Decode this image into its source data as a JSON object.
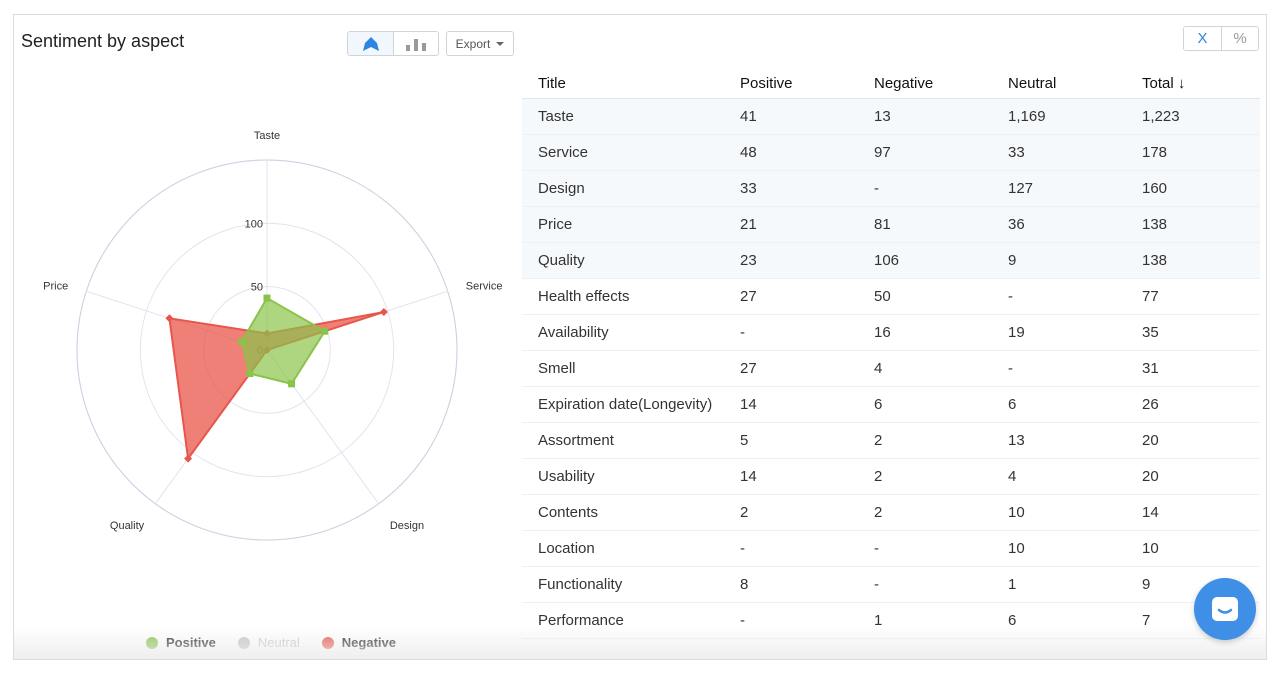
{
  "header": {
    "title": "Sentiment by aspect",
    "export_label": "Export",
    "radar_icon": "radar-chart-icon",
    "bar_icon": "bar-chart-icon",
    "mode_count_label": "X",
    "mode_percent_label": "%"
  },
  "chart_data": {
    "type": "radar",
    "categories": [
      "Taste",
      "Service",
      "Design",
      "Quality",
      "Price"
    ],
    "rticks": [
      0,
      50,
      100
    ],
    "rmax": 150,
    "series": [
      {
        "name": "Positive",
        "values": [
          41,
          48,
          33,
          23,
          21
        ],
        "color": "#8bc34a"
      },
      {
        "name": "Neutral",
        "values": [
          1169,
          33,
          127,
          9,
          36
        ],
        "color": "#c4c4c4",
        "hidden": true
      },
      {
        "name": "Negative",
        "values": [
          13,
          97,
          0,
          106,
          81
        ],
        "color": "#e8564b"
      }
    ],
    "legend": [
      "Positive",
      "Neutral",
      "Negative"
    ]
  },
  "table": {
    "headers": [
      "Title",
      "Positive",
      "Negative",
      "Neutral",
      "Total ↓"
    ],
    "rows": [
      [
        "Taste",
        "41",
        "13",
        "1,169",
        "1,223"
      ],
      [
        "Service",
        "48",
        "97",
        "33",
        "178"
      ],
      [
        "Design",
        "33",
        "-",
        "127",
        "160"
      ],
      [
        "Price",
        "21",
        "81",
        "36",
        "138"
      ],
      [
        "Quality",
        "23",
        "106",
        "9",
        "138"
      ],
      [
        "Health effects",
        "27",
        "50",
        "-",
        "77"
      ],
      [
        "Availability",
        "-",
        "16",
        "19",
        "35"
      ],
      [
        "Smell",
        "27",
        "4",
        "-",
        "31"
      ],
      [
        "Expiration date(Longevity)",
        "14",
        "6",
        "6",
        "26"
      ],
      [
        "Assortment",
        "5",
        "2",
        "13",
        "20"
      ],
      [
        "Usability",
        "14",
        "2",
        "4",
        "20"
      ],
      [
        "Contents",
        "2",
        "2",
        "10",
        "14"
      ],
      [
        "Location",
        "-",
        "-",
        "10",
        "10"
      ],
      [
        "Functionality",
        "8",
        "-",
        "1",
        "9"
      ],
      [
        "Performance",
        "-",
        "1",
        "6",
        "7"
      ]
    ],
    "highlighted_rows": 5
  },
  "colors": {
    "accent": "#2f86e0",
    "positive": "#8bc34a",
    "negative": "#e8564b",
    "neutral": "#c4c4c4",
    "fab": "#3f8fe6"
  }
}
